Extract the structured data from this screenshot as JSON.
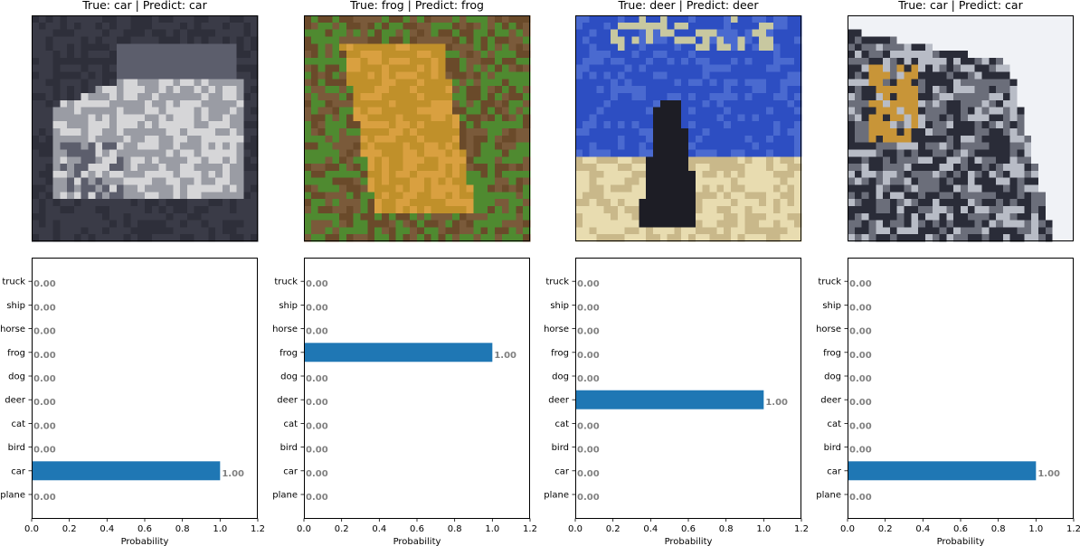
{
  "panels": [
    {
      "title": "True: car | Predict: car",
      "image": {
        "subject": "car",
        "palette": [
          "#3a3b47",
          "#5c5e6c",
          "#9a9ca4",
          "#d6d6d8",
          "#2e2f3a"
        ]
      }
    },
    {
      "title": "True: frog | Predict: frog",
      "image": {
        "subject": "frog",
        "palette": [
          "#6a4a2a",
          "#c0902a",
          "#4f8a30",
          "#7a5a3a",
          "#d9a040"
        ]
      }
    },
    {
      "title": "True: deer | Predict: deer",
      "image": {
        "subject": "deer",
        "palette": [
          "#2d4ec2",
          "#4a6ad0",
          "#e8dcb0",
          "#1d1d25",
          "#c9b88a"
        ]
      }
    },
    {
      "title": "True: car | Predict: car",
      "image": {
        "subject": "car",
        "palette": [
          "#f0f2f6",
          "#6b6e7a",
          "#c89538",
          "#2a2c38",
          "#b8bcc6"
        ]
      }
    }
  ],
  "chart_data": [
    {
      "type": "bar",
      "orientation": "horizontal",
      "categories": [
        "plane",
        "car",
        "bird",
        "cat",
        "deer",
        "dog",
        "frog",
        "horse",
        "ship",
        "truck"
      ],
      "values": [
        0,
        1,
        0,
        0,
        0,
        0,
        0,
        0,
        0,
        0
      ],
      "value_labels": [
        "0.00",
        "1.00",
        "0.00",
        "0.00",
        "0.00",
        "0.00",
        "0.00",
        "0.00",
        "0.00",
        "0.00"
      ],
      "xlabel": "Probability",
      "xlim": [
        0,
        1.2
      ],
      "xticks": [
        "0.0",
        "0.2",
        "0.4",
        "0.6",
        "0.8",
        "1.0",
        "1.2"
      ],
      "bar_color": "#1f77b4"
    },
    {
      "type": "bar",
      "orientation": "horizontal",
      "categories": [
        "plane",
        "car",
        "bird",
        "cat",
        "deer",
        "dog",
        "frog",
        "horse",
        "ship",
        "truck"
      ],
      "values": [
        0,
        0,
        0,
        0,
        0,
        0,
        1,
        0,
        0,
        0
      ],
      "value_labels": [
        "0.00",
        "0.00",
        "0.00",
        "0.00",
        "0.00",
        "0.00",
        "1.00",
        "0.00",
        "0.00",
        "0.00"
      ],
      "xlabel": "Probability",
      "xlim": [
        0,
        1.2
      ],
      "xticks": [
        "0.0",
        "0.2",
        "0.4",
        "0.6",
        "0.8",
        "1.0",
        "1.2"
      ],
      "bar_color": "#1f77b4"
    },
    {
      "type": "bar",
      "orientation": "horizontal",
      "categories": [
        "plane",
        "car",
        "bird",
        "cat",
        "deer",
        "dog",
        "frog",
        "horse",
        "ship",
        "truck"
      ],
      "values": [
        0,
        0,
        0,
        0,
        1,
        0,
        0,
        0,
        0,
        0
      ],
      "value_labels": [
        "0.00",
        "0.00",
        "0.00",
        "0.00",
        "1.00",
        "0.00",
        "0.00",
        "0.00",
        "0.00",
        "0.00"
      ],
      "xlabel": "Probability",
      "xlim": [
        0,
        1.2
      ],
      "xticks": [
        "0.0",
        "0.2",
        "0.4",
        "0.6",
        "0.8",
        "1.0",
        "1.2"
      ],
      "bar_color": "#1f77b4"
    },
    {
      "type": "bar",
      "orientation": "horizontal",
      "categories": [
        "plane",
        "car",
        "bird",
        "cat",
        "deer",
        "dog",
        "frog",
        "horse",
        "ship",
        "truck"
      ],
      "values": [
        0,
        1,
        0,
        0,
        0,
        0,
        0,
        0,
        0,
        0
      ],
      "value_labels": [
        "0.00",
        "1.00",
        "0.00",
        "0.00",
        "0.00",
        "0.00",
        "0.00",
        "0.00",
        "0.00",
        "0.00"
      ],
      "xlabel": "Probability",
      "xlim": [
        0,
        1.2
      ],
      "xticks": [
        "0.0",
        "0.2",
        "0.4",
        "0.6",
        "0.8",
        "1.0",
        "1.2"
      ],
      "bar_color": "#1f77b4"
    }
  ]
}
